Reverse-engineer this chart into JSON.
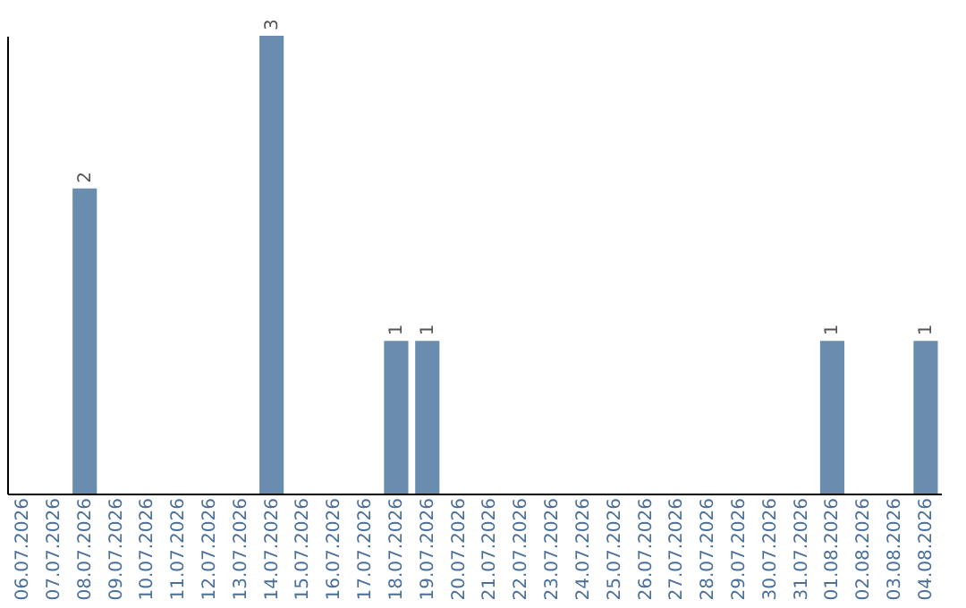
{
  "chart_data": {
    "type": "bar",
    "categories": [
      "06.07.2026",
      "07.07.2026",
      "08.07.2026",
      "09.07.2026",
      "10.07.2026",
      "11.07.2026",
      "12.07.2026",
      "13.07.2026",
      "14.07.2026",
      "15.07.2026",
      "16.07.2026",
      "17.07.2026",
      "18.07.2026",
      "19.07.2026",
      "20.07.2026",
      "21.07.2026",
      "22.07.2026",
      "23.07.2026",
      "24.07.2026",
      "25.07.2026",
      "26.07.2026",
      "27.07.2026",
      "28.07.2026",
      "29.07.2026",
      "30.07.2026",
      "31.07.2026",
      "01.08.2026",
      "02.08.2026",
      "03.08.2026",
      "04.08.2026"
    ],
    "values": [
      0,
      0,
      2,
      0,
      0,
      0,
      0,
      0,
      3,
      0,
      0,
      0,
      1,
      1,
      0,
      0,
      0,
      0,
      0,
      0,
      0,
      0,
      0,
      0,
      0,
      0,
      1,
      0,
      0,
      1
    ],
    "value_labels": [
      null,
      null,
      "2",
      null,
      null,
      null,
      null,
      null,
      "3",
      null,
      null,
      null,
      "1",
      "1",
      null,
      null,
      null,
      null,
      null,
      null,
      null,
      null,
      null,
      null,
      null,
      null,
      "1",
      null,
      null,
      "1"
    ],
    "color": "#6a8caf",
    "tick_labels": "x"
  }
}
